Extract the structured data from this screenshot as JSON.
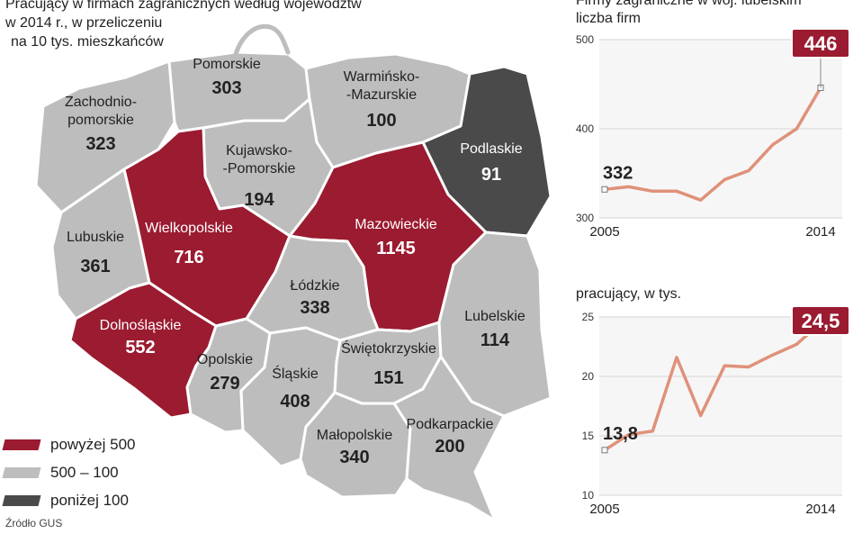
{
  "colors": {
    "above_500": "#9b1b30",
    "between_100_500": "#bdbdbd",
    "below_100": "#4a4a4a",
    "border": "#ffffff",
    "line": "#e0917a",
    "highlight": "#9b1b30"
  },
  "headline": {
    "line1": "Pracujący w firmach zagranicznych według województw",
    "line2": "w 2014 r., w przeliczeniu",
    "line3": "na 10 tys. mieszkańców"
  },
  "legend": {
    "above_500": "powyżej 500",
    "between_100_500": "500 – 100",
    "below_100": "poniżej 100"
  },
  "source": "Źródło GUS",
  "regions": [
    {
      "id": "zachodniopomorskie",
      "name_lines": [
        "Zachodnio-",
        "pomorskie"
      ],
      "value": "323",
      "category": "between_100_500"
    },
    {
      "id": "pomorskie",
      "name_lines": [
        "Pomorskie"
      ],
      "value": "303",
      "category": "between_100_500"
    },
    {
      "id": "warminsko-mazurskie",
      "name_lines": [
        "Warmińsko-",
        "-Mazurskie"
      ],
      "value": "100",
      "category": "between_100_500"
    },
    {
      "id": "podlaskie",
      "name_lines": [
        "Podlaskie"
      ],
      "value": "91",
      "category": "below_100"
    },
    {
      "id": "kujawsko-pomorskie",
      "name_lines": [
        "Kujawsko-",
        "-Pomorskie"
      ],
      "value": "194",
      "category": "between_100_500"
    },
    {
      "id": "lubuskie",
      "name_lines": [
        "Lubuskie"
      ],
      "value": "361",
      "category": "between_100_500"
    },
    {
      "id": "wielkopolskie",
      "name_lines": [
        "Wielkopolskie"
      ],
      "value": "716",
      "category": "above_500"
    },
    {
      "id": "mazowieckie",
      "name_lines": [
        "Mazowieckie"
      ],
      "value": "1145",
      "category": "above_500"
    },
    {
      "id": "lodzkie",
      "name_lines": [
        "Łódzkie"
      ],
      "value": "338",
      "category": "between_100_500"
    },
    {
      "id": "dolnoslaskie",
      "name_lines": [
        "Dolnośląskie"
      ],
      "value": "552",
      "category": "above_500"
    },
    {
      "id": "opolskie",
      "name_lines": [
        "Opolskie"
      ],
      "value": "279",
      "category": "between_100_500"
    },
    {
      "id": "slaskie",
      "name_lines": [
        "Śląskie"
      ],
      "value": "408",
      "category": "between_100_500"
    },
    {
      "id": "swietokrzyskie",
      "name_lines": [
        "Świętokrzyskie"
      ],
      "value": "151",
      "category": "between_100_500"
    },
    {
      "id": "lubelskie",
      "name_lines": [
        "Lubelskie"
      ],
      "value": "114",
      "category": "between_100_500"
    },
    {
      "id": "malopolskie",
      "name_lines": [
        "Małopolskie"
      ],
      "value": "340",
      "category": "between_100_500"
    },
    {
      "id": "podkarpackie",
      "name_lines": [
        "Podkarpackie"
      ],
      "value": "200",
      "category": "between_100_500"
    }
  ],
  "panel_top": {
    "title_line1": "Firmy zagraniczne w woj. lubelskim",
    "title_line2": "liczba firm"
  },
  "panel_bottom": {
    "title": "pracujący, w tys."
  },
  "chart_data": [
    {
      "type": "line",
      "title": "Firmy zagraniczne w woj. lubelskim",
      "ylabel": "liczba firm",
      "x": [
        2005,
        2006,
        2007,
        2008,
        2009,
        2010,
        2011,
        2012,
        2013,
        2014
      ],
      "x_tick_labels": [
        "2005",
        "2014"
      ],
      "y": [
        332,
        335,
        330,
        330,
        320,
        343,
        353,
        382,
        400,
        446
      ],
      "ylim": [
        300,
        500
      ],
      "y_ticks": [
        "300",
        "400",
        "500"
      ],
      "grid": true,
      "annotations": {
        "start": "332",
        "end": "446"
      }
    },
    {
      "type": "line",
      "title": "pracujący, w tys.",
      "x": [
        2005,
        2006,
        2007,
        2008,
        2009,
        2010,
        2011,
        2012,
        2013,
        2014
      ],
      "x_tick_labels": [
        "2005",
        "2014"
      ],
      "y": [
        13.8,
        15.1,
        15.4,
        21.6,
        16.7,
        20.9,
        20.8,
        21.8,
        22.7,
        24.5
      ],
      "ylim": [
        10,
        25
      ],
      "y_ticks": [
        "10",
        "15",
        "20",
        "25"
      ],
      "grid": true,
      "annotations": {
        "start": "13,8",
        "end": "24,5"
      }
    }
  ]
}
